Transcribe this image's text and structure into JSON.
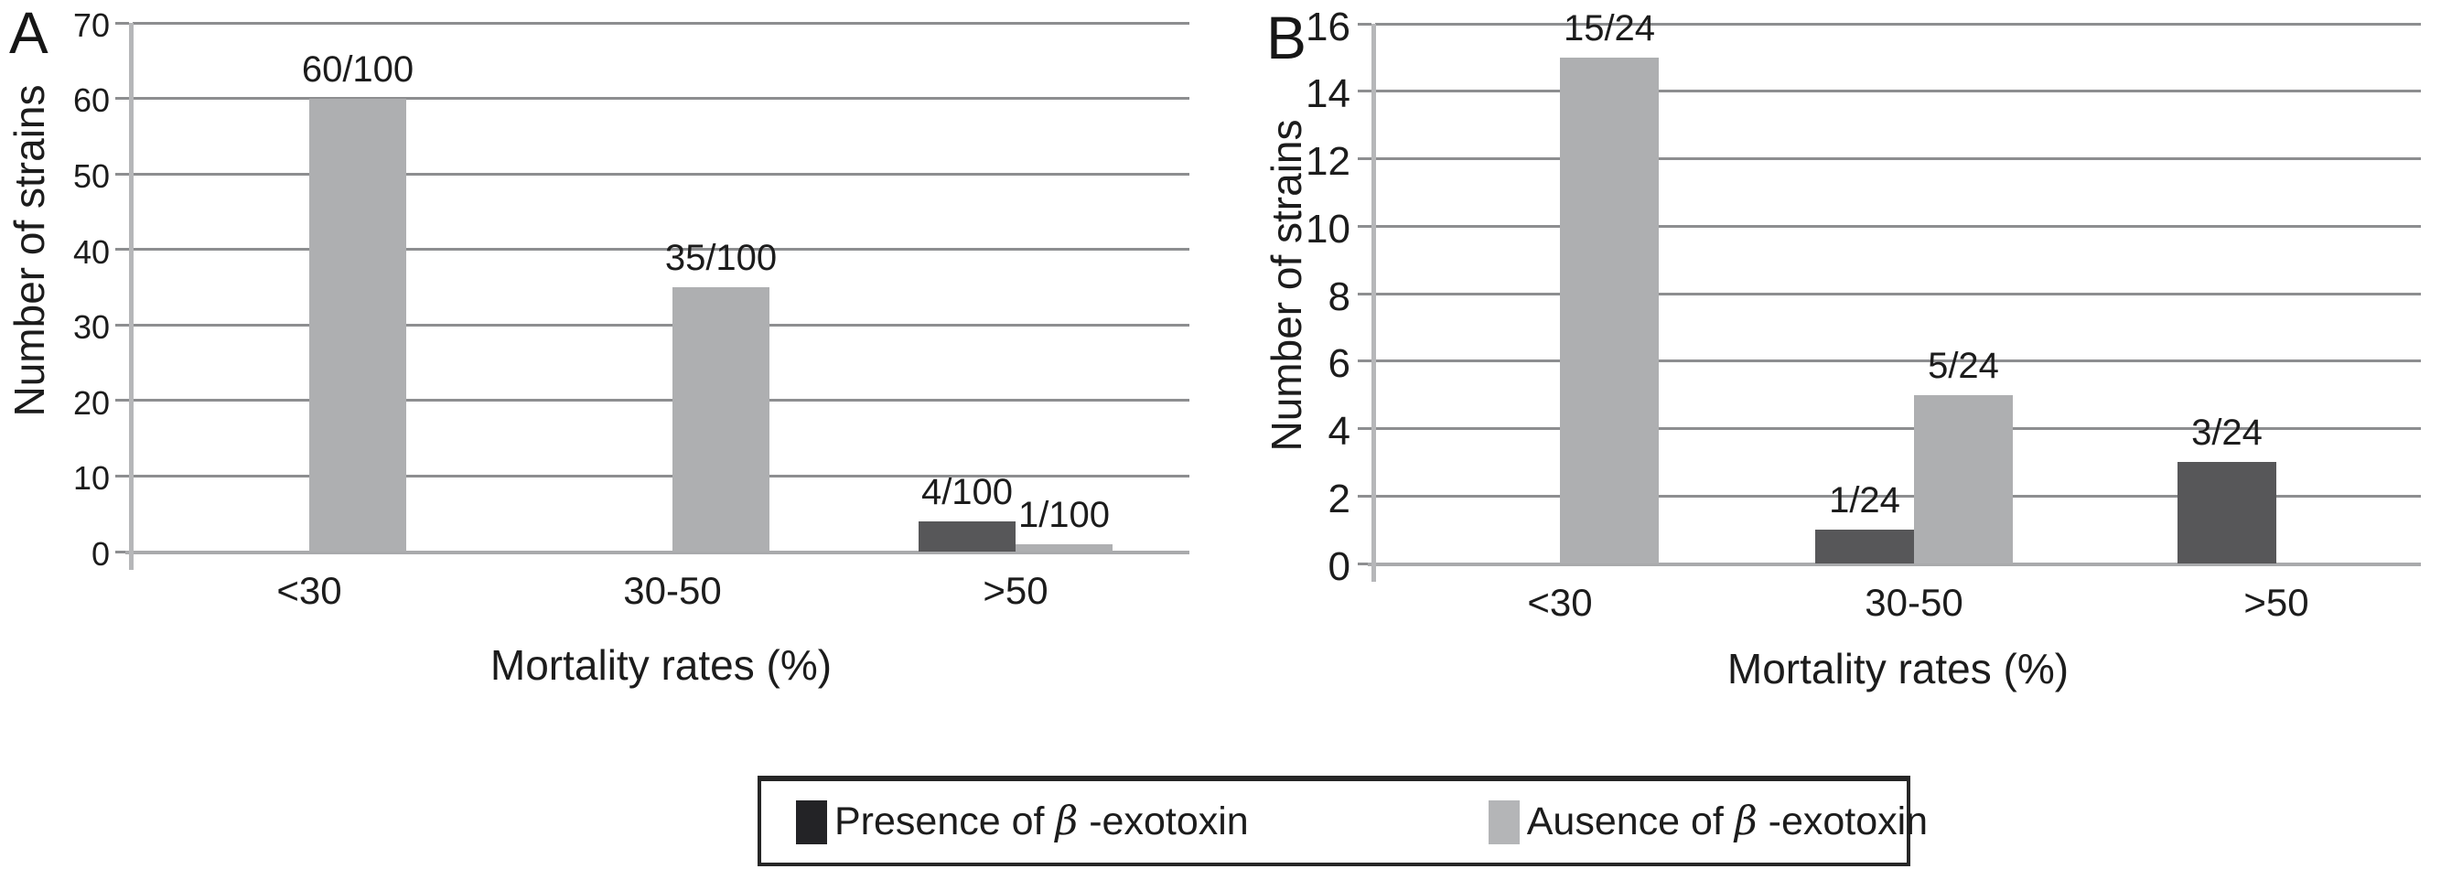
{
  "figure": {
    "background": "#ffffff",
    "text_color": "#1c1c1c",
    "gridline_color": "#8d8e90",
    "axis_line_color": "#b6b7b9",
    "panels": [
      "A",
      "B"
    ],
    "legend": {
      "position": "bottom-center",
      "items": [
        {
          "series": "presence",
          "prefix": "Presence of ",
          "beta": "β",
          "suffix": " -exotoxin",
          "swatch_color": "#232326"
        },
        {
          "series": "absence",
          "prefix": "Ausence of ",
          "beta": "β",
          "suffix": " -exotoxin",
          "swatch_color": "#b4b5b7"
        }
      ]
    }
  },
  "chart_data": [
    {
      "type": "bar",
      "panel": "A",
      "categories": [
        "<30",
        "30-50",
        ">50"
      ],
      "series": [
        {
          "name": "Presence of β-exotoxin",
          "slot": "left",
          "color": "#575759",
          "values": [
            0,
            0,
            4
          ],
          "labels": [
            "",
            "",
            "4/100"
          ]
        },
        {
          "name": "Ausence of β-exotoxin",
          "slot": "right",
          "color": "#aeafb1",
          "values": [
            60,
            35,
            1
          ],
          "labels": [
            "60/100",
            "35/100",
            "1/100"
          ]
        }
      ],
      "xlabel": "Mortality rates (%)",
      "ylabel": "Number of strains",
      "ylim": [
        0,
        70
      ],
      "ytick_step": 10,
      "yticks": [
        0,
        10,
        20,
        30,
        40,
        50,
        60,
        70
      ],
      "grid": true
    },
    {
      "type": "bar",
      "panel": "B",
      "categories": [
        "<30",
        "30-50",
        ">50"
      ],
      "series": [
        {
          "name": "Presence of β-exotoxin",
          "slot": "left",
          "color": "#575759",
          "values": [
            0,
            1,
            3
          ],
          "labels": [
            "",
            "1/24",
            "3/24"
          ]
        },
        {
          "name": "Ausence of β-exotoxin",
          "slot": "right",
          "color": "#aeafb1",
          "values": [
            15,
            5,
            0
          ],
          "labels": [
            "15/24",
            "5/24",
            ""
          ]
        }
      ],
      "xlabel": "Mortality rates (%)",
      "ylabel": "Number of strains",
      "ylim": [
        0,
        16
      ],
      "ytick_step": 2,
      "yticks": [
        0,
        2,
        4,
        6,
        8,
        10,
        12,
        14,
        16
      ],
      "grid": true
    }
  ]
}
